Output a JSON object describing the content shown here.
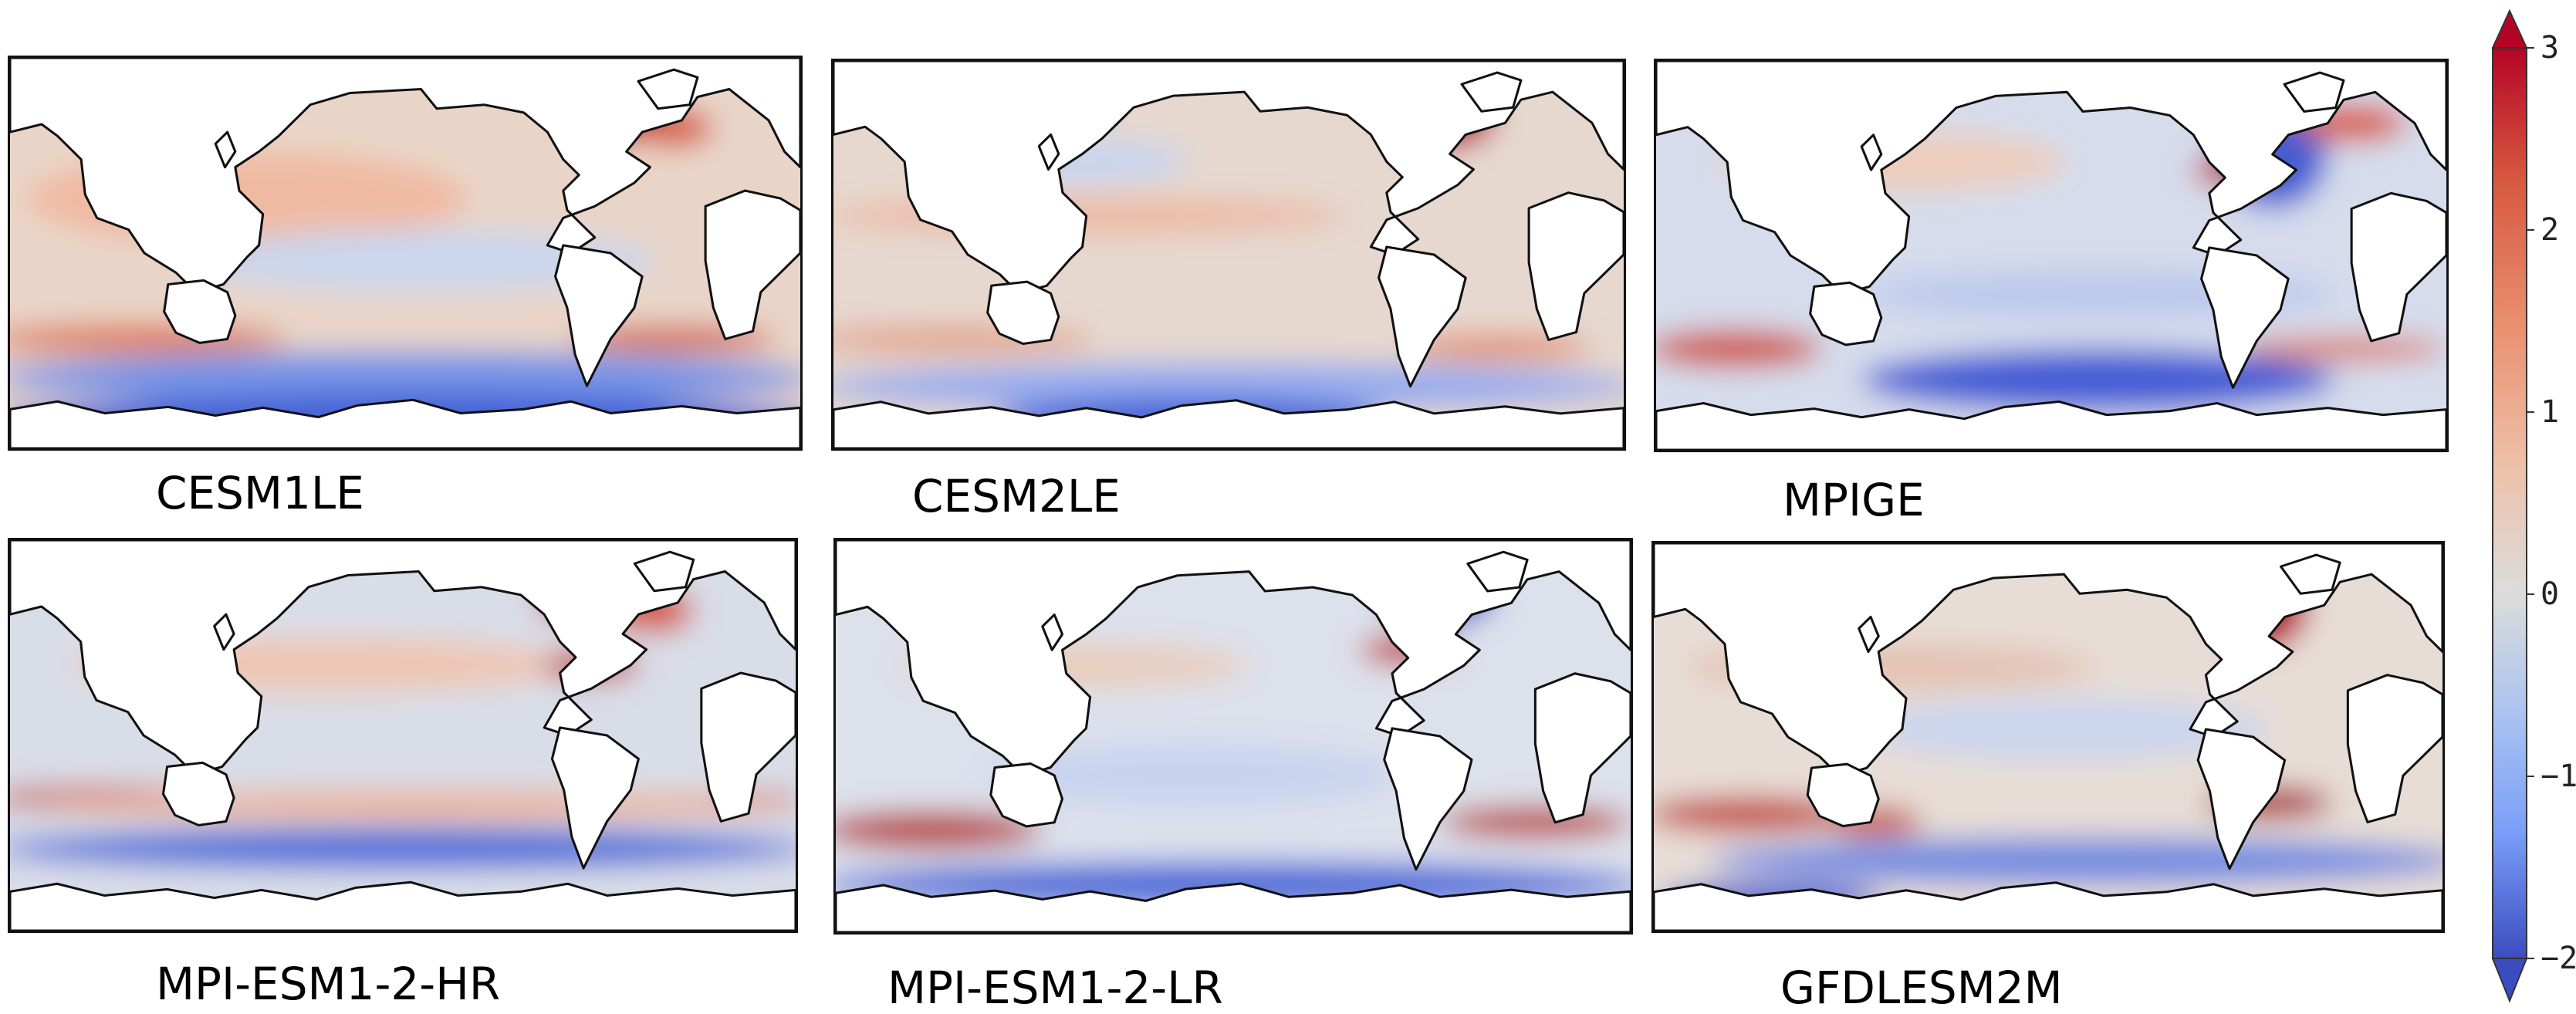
{
  "panels": [
    {
      "id": "p1",
      "name": "CESM1LE",
      "label": "CESM1LE"
    },
    {
      "id": "p2",
      "name": "CESM2LE",
      "label": "CESM2LE"
    },
    {
      "id": "p3",
      "name": "MPIGE",
      "label": "MPIGE"
    },
    {
      "id": "p4",
      "name": "MPI-ESM1-2-HR",
      "label": "MPI-ESM1-2-HR"
    },
    {
      "id": "p5",
      "name": "MPI-ESM1-2-LR",
      "label": "MPI-ESM1-2-LR"
    },
    {
      "id": "p6",
      "name": "GFDLESM2M",
      "label": "GFDLESM2M"
    }
  ],
  "colorbar": {
    "min": -2,
    "max": 3,
    "ticks": [
      "3",
      "2",
      "1",
      "0",
      "−1",
      "−2"
    ],
    "colormap": "coolwarm",
    "extend": "both",
    "colors": {
      "low": "#3b4cc0",
      "neutral": "#dddddd",
      "high": "#b40426"
    }
  }
}
